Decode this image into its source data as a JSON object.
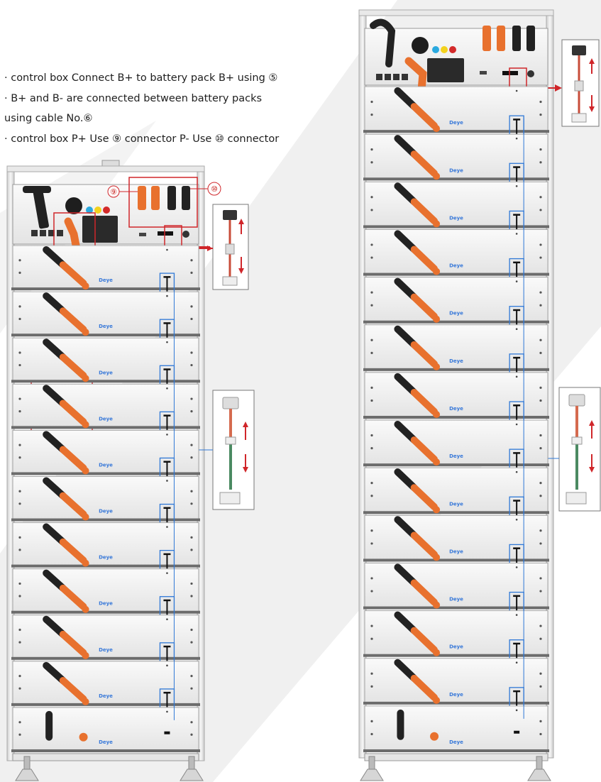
{
  "instructions": [
    "· control box Connect B+ to battery pack B+ using ⑤",
    "· B+ and B- are connected between battery packs",
    "using cable No.⑥",
    "· control box P+ Use ⑨ connector P- Use ⑩ connector"
  ],
  "callouts": {
    "p_plus": "⑨",
    "p_minus": "⑩",
    "control_to_pack": "⑤",
    "between_packs": "⑥"
  },
  "brand": "Deye",
  "left_rack_modules": 11,
  "right_rack_modules": 14,
  "colors": {
    "orange_cable": "#e8712e",
    "black_cable": "#222222",
    "red_callout": "#d0262a",
    "blue_link": "#2f78d6",
    "panel": "#f1f1f1"
  }
}
